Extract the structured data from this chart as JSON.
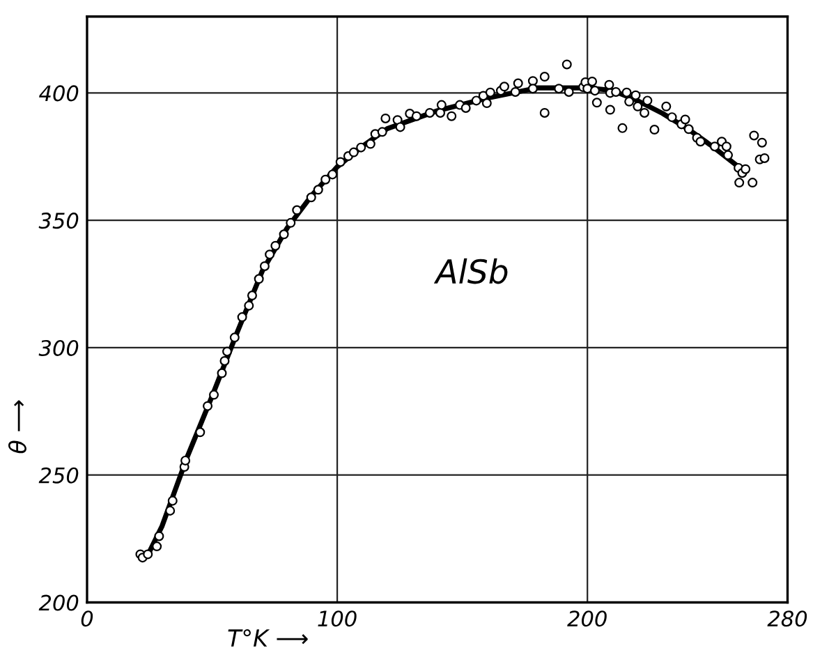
{
  "chart_data": {
    "type": "scatter",
    "xlabel": "T°K ⟶",
    "ylabel": "θ ⟶",
    "annotations": [
      "AlSb"
    ],
    "xlim": [
      0,
      280
    ],
    "ylim": [
      200,
      430
    ],
    "xticks": [
      0,
      100,
      200,
      280
    ],
    "yticks": [
      200,
      250,
      300,
      350,
      400
    ],
    "grid": true,
    "series": [
      {
        "color": "#000000",
        "marker": "circle",
        "x": [
          21.3,
          22.2,
          24.3,
          27.9,
          28.8,
          33.2,
          34.2,
          38.9,
          39.3,
          45.2,
          48.2,
          50.7,
          53.9,
          55,
          56,
          59,
          62,
          64.7,
          66,
          68.7,
          71,
          73,
          75.3,
          78.7,
          81.4,
          83.9,
          89.6,
          92.4,
          95.3,
          98.1,
          101.3,
          104.4,
          106.6,
          109.5,
          113.3,
          115.2,
          118,
          119.3,
          124.1,
          125.2,
          129,
          131.7,
          137,
          141.2,
          141.7,
          145.7,
          149,
          151.4,
          155.6,
          159.8,
          158.4,
          161.2,
          165.4,
          166.8,
          171.2,
          172.3,
          178.2,
          178.2,
          182.9,
          182.9,
          188.6,
          191.8,
          192.6,
          198.3,
          199.2,
          201.9,
          200,
          203,
          203.8,
          208.7,
          209.1,
          209.1,
          211.4,
          214,
          215.7,
          216.7,
          219.3,
          220.1,
          222.8,
          224,
          226.8,
          231.5,
          233.8,
          237.6,
          239.1,
          240.5,
          243.8,
          245.2,
          250.9,
          253.7,
          255.6,
          256.2,
          260.4,
          260.7,
          261.9,
          263.2,
          266,
          266.6,
          268.9,
          269.8,
          270.8
        ],
        "values": [
          218.9,
          217.6,
          218.9,
          222,
          226,
          236,
          239.9,
          253.2,
          255.7,
          266.8,
          277.1,
          281.5,
          290,
          294.8,
          298.5,
          304,
          312,
          316.5,
          320.5,
          327,
          332,
          336.6,
          340,
          344.5,
          349,
          354,
          359,
          362,
          366,
          368,
          372.9,
          375.2,
          376.7,
          378.6,
          380,
          383.9,
          384.7,
          390,
          389.4,
          386.6,
          391.9,
          390.9,
          392.2,
          392.2,
          395.3,
          390.9,
          395.3,
          394.1,
          397,
          396,
          398.9,
          400.2,
          400.9,
          402.5,
          400.4,
          403.8,
          404.7,
          401.7,
          406.4,
          392.2,
          401.7,
          411.2,
          400.4,
          402.3,
          404.2,
          404.5,
          401.7,
          400.9,
          396.2,
          403.2,
          400,
          393.4,
          400.4,
          386.2,
          400.2,
          396.6,
          399.1,
          394.7,
          392.2,
          397,
          385.6,
          394.7,
          390.5,
          387.7,
          389.6,
          385.8,
          382.4,
          380.9,
          379,
          380.9,
          379,
          375.6,
          370.6,
          364.8,
          368.6,
          370.1,
          364.8,
          383.3,
          373.9,
          380.5,
          374.4
        ]
      },
      {
        "type": "line",
        "color": "#000000",
        "line_style": "solid",
        "x": [
          21,
          25,
          30,
          40,
          50,
          60,
          70,
          80,
          90,
          100,
          110,
          120,
          140,
          160,
          180,
          200,
          210,
          220,
          230,
          240,
          250,
          263
        ],
        "values": [
          218,
          220,
          230,
          257,
          281,
          306,
          330,
          347,
          360,
          371,
          379,
          386,
          393,
          398,
          402,
          402,
          401,
          397,
          392,
          386,
          379,
          369
        ]
      }
    ]
  }
}
